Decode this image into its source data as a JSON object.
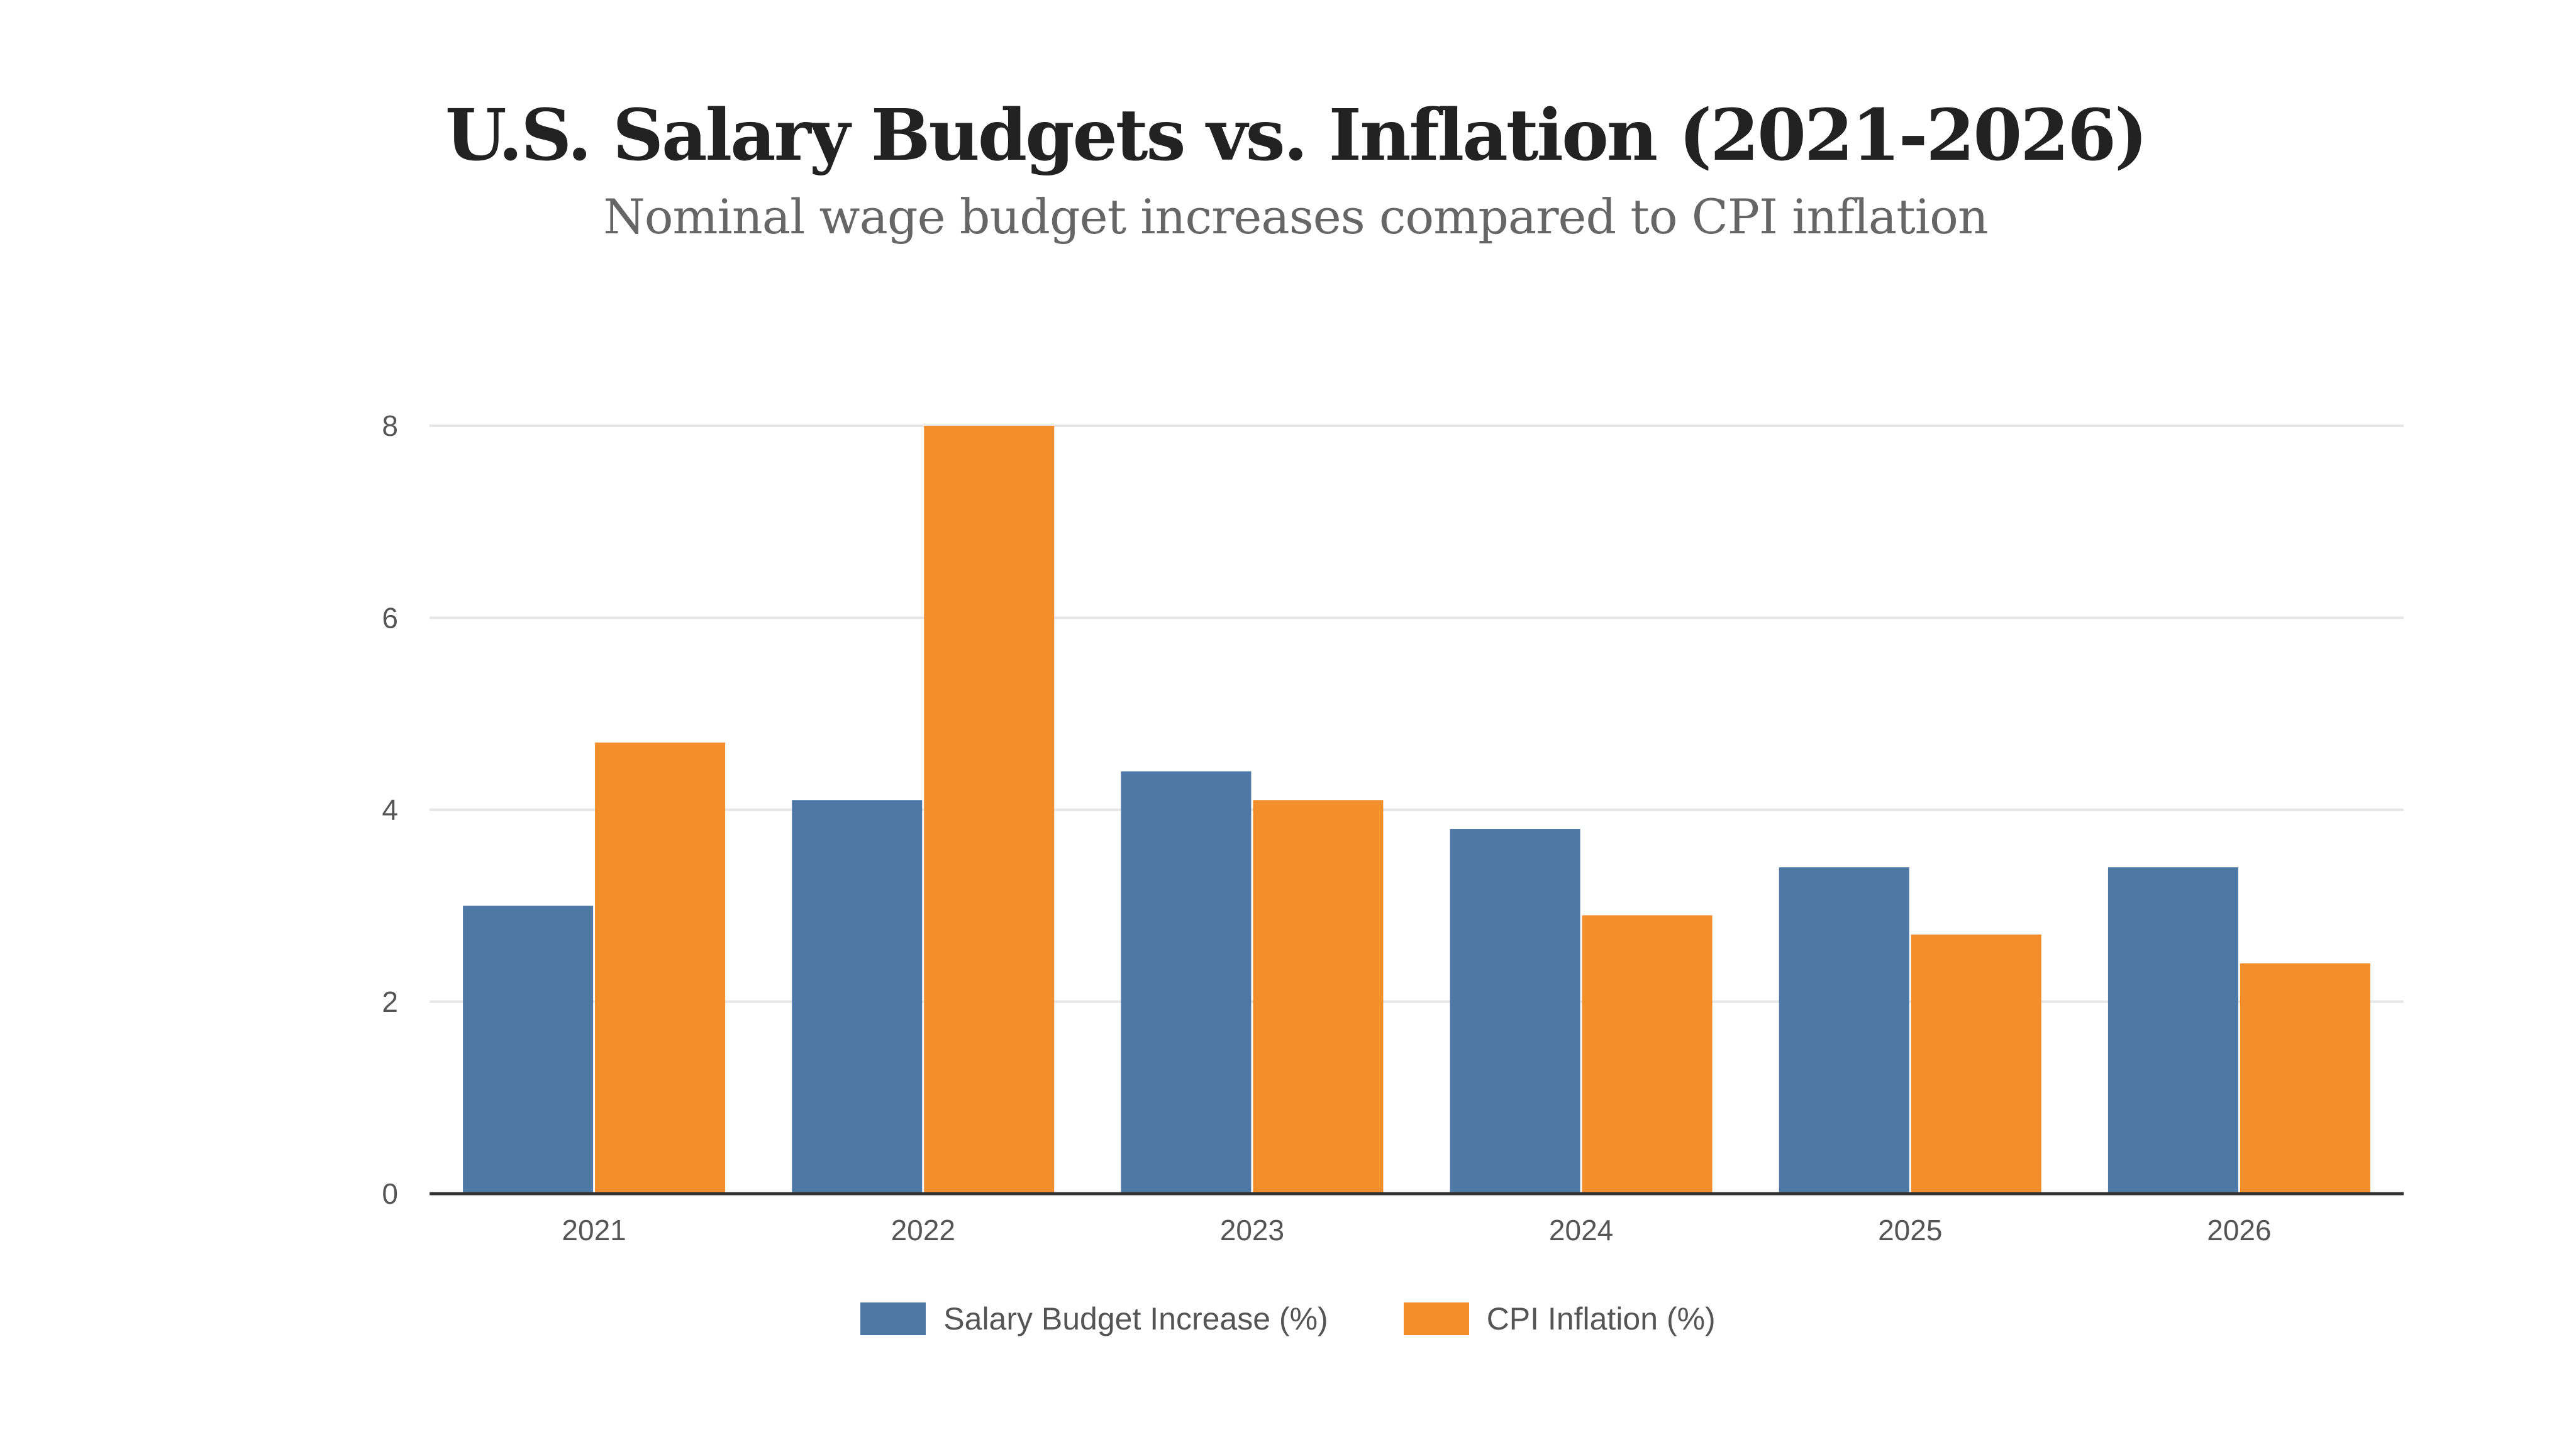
{
  "chart_data": {
    "type": "bar",
    "title": "U.S. Salary Budgets vs. Inflation (2021-2026)",
    "subtitle": "Nominal wage budget increases compared to CPI inflation",
    "categories": [
      "2021",
      "2022",
      "2023",
      "2024",
      "2025",
      "2026"
    ],
    "series": [
      {
        "name": "Salary Budget Increase (%)",
        "color": "#4e79a7",
        "values": [
          3.0,
          4.1,
          4.4,
          3.8,
          3.4,
          3.4
        ]
      },
      {
        "name": "CPI Inflation (%)",
        "color": "#f28e2c",
        "values": [
          4.7,
          8.0,
          4.1,
          2.9,
          2.7,
          2.4
        ]
      }
    ],
    "xlabel": "",
    "ylabel": "",
    "ylim": [
      0,
      8
    ],
    "yticks": [
      0,
      2,
      4,
      6,
      8
    ],
    "grid": true,
    "legend": "bottom-center"
  }
}
